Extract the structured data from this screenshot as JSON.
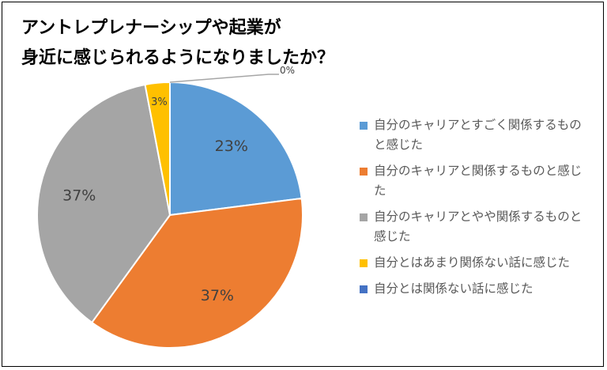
{
  "chart_data": {
    "type": "pie",
    "title": "アントレプレナーシップや起業が身近に感じられるようになりましたか？",
    "title_lines": [
      "アントレプレナーシップや起業が",
      "身近に感じられるようになりましたか？"
    ],
    "categories": [
      "自分のキャリアとすごく関係するものと感じた",
      "自分のキャリアと関係するものと感じた",
      "自分のキャリアとやや関係するものと感じた",
      "自分とはあまり関係ない話に感じた",
      "自分とは関係ない話に感じた"
    ],
    "values": [
      23,
      37,
      37,
      3,
      0
    ],
    "data_labels": [
      "23%",
      "37%",
      "37%",
      "3%",
      "0%"
    ],
    "colors": [
      "#5B9BD5",
      "#ED7D31",
      "#A5A5A5",
      "#FFC000",
      "#4472C4"
    ],
    "legend_position": "right"
  }
}
